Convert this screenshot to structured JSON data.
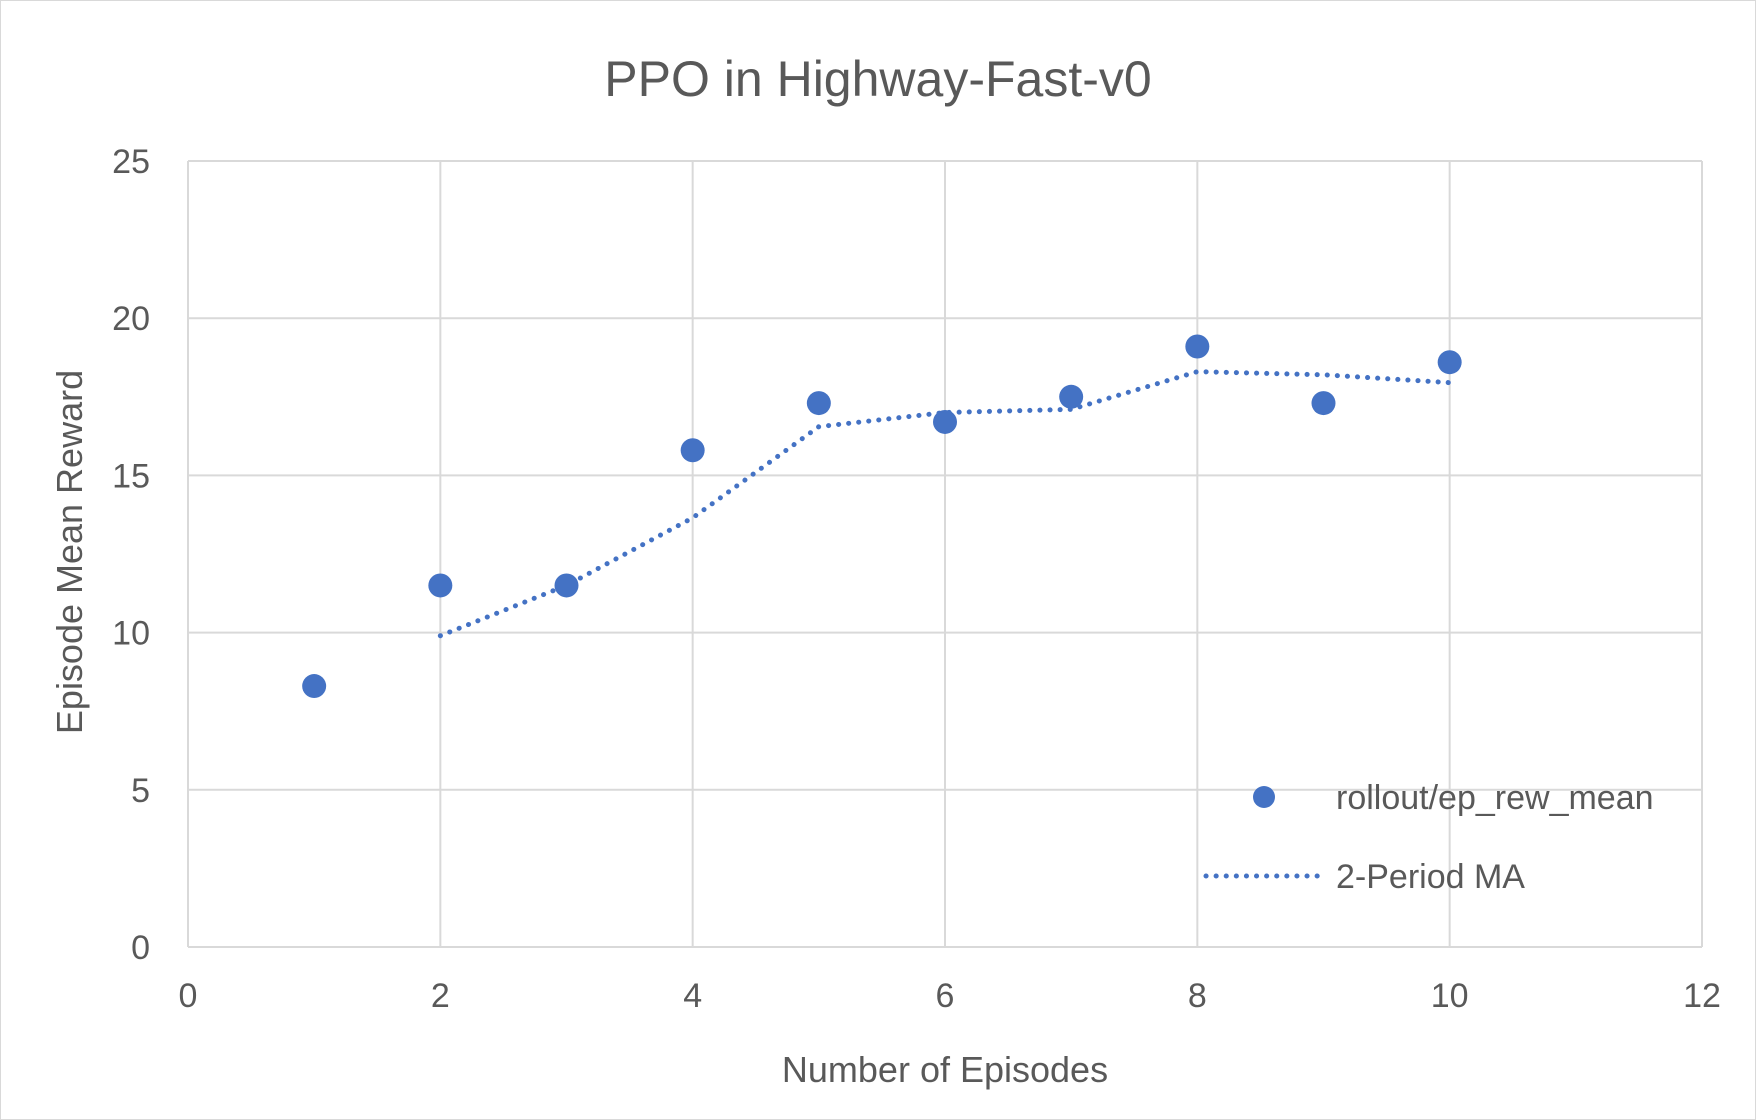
{
  "chart_data": {
    "type": "scatter",
    "title": "PPO in Highway-Fast-v0",
    "xlabel": "Number of Episodes",
    "ylabel": "Episode Mean Reward",
    "xlim": [
      0,
      12
    ],
    "ylim": [
      0,
      25
    ],
    "x_ticks": [
      "0",
      "2",
      "4",
      "6",
      "8",
      "10",
      "12"
    ],
    "y_ticks": [
      "0",
      "5",
      "10",
      "15",
      "20",
      "25"
    ],
    "grid": true,
    "legend_position": "bottom-right",
    "series": [
      {
        "name": "rollout/ep_rew_mean",
        "kind": "markers",
        "color": "#4472c4",
        "x": [
          1,
          2,
          3,
          4,
          5,
          6,
          7,
          8,
          9,
          10
        ],
        "y": [
          8.3,
          11.5,
          11.5,
          15.8,
          17.3,
          16.7,
          17.5,
          19.1,
          17.3,
          18.6
        ]
      },
      {
        "name": "2-Period MA",
        "kind": "dotted-line",
        "color": "#4472c4",
        "x": [
          2,
          3,
          4,
          5,
          6,
          7,
          8,
          9,
          10
        ],
        "y": [
          9.9,
          11.5,
          13.65,
          16.55,
          17.0,
          17.1,
          18.3,
          18.2,
          17.95
        ]
      }
    ]
  }
}
